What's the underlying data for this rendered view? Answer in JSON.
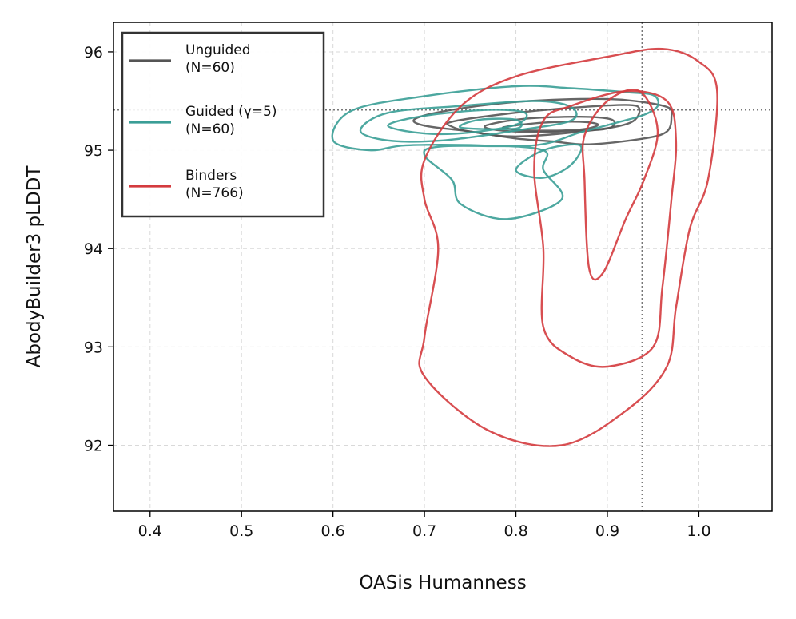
{
  "chart_data": {
    "type": "contour",
    "title": "",
    "xlabel": "OASis Humanness",
    "ylabel": "AbodyBuilder3 pLDDT",
    "xlim": [
      0.36,
      1.08
    ],
    "ylim": [
      91.33,
      96.3
    ],
    "x_ticks": [
      0.4,
      0.5,
      0.6,
      0.7,
      0.8,
      0.9,
      1.0
    ],
    "x_tick_labels": [
      "0.4",
      "0.5",
      "0.6",
      "0.7",
      "0.8",
      "0.9",
      "1.0"
    ],
    "y_ticks": [
      92,
      93,
      94,
      95,
      96
    ],
    "y_tick_labels": [
      "92",
      "93",
      "94",
      "95",
      "96"
    ],
    "grid": true,
    "legend_position": "top-left",
    "reference_lines": {
      "vertical_x": 0.938,
      "horizontal_y": 95.41
    },
    "series": [
      {
        "name": "Unguided",
        "count_label": "(N=60)",
        "color": "#555555",
        "contours": [
          [
            [
              0.69,
              95.32
            ],
            [
              0.73,
              95.41
            ],
            [
              0.8,
              95.49
            ],
            [
              0.87,
              95.52
            ],
            [
              0.92,
              95.51
            ],
            [
              0.965,
              95.44
            ],
            [
              0.97,
              95.34
            ],
            [
              0.965,
              95.19
            ],
            [
              0.94,
              95.12
            ],
            [
              0.88,
              95.06
            ],
            [
              0.84,
              95.09
            ],
            [
              0.8,
              95.12
            ],
            [
              0.75,
              95.19
            ],
            [
              0.7,
              95.25
            ]
          ],
          [
            [
              0.73,
              95.29
            ],
            [
              0.79,
              95.37
            ],
            [
              0.86,
              95.43
            ],
            [
              0.92,
              95.46
            ],
            [
              0.935,
              95.42
            ],
            [
              0.925,
              95.28
            ],
            [
              0.88,
              95.2
            ],
            [
              0.8,
              95.14
            ],
            [
              0.75,
              95.19
            ],
            [
              0.73,
              95.24
            ]
          ],
          [
            [
              0.77,
              95.26
            ],
            [
              0.81,
              95.32
            ],
            [
              0.87,
              95.34
            ],
            [
              0.905,
              95.31
            ],
            [
              0.9,
              95.22
            ],
            [
              0.85,
              95.19
            ],
            [
              0.8,
              95.19
            ],
            [
              0.77,
              95.22
            ]
          ],
          [
            [
              0.79,
              95.24
            ],
            [
              0.83,
              95.28
            ],
            [
              0.87,
              95.29
            ],
            [
              0.89,
              95.26
            ],
            [
              0.87,
              95.21
            ],
            [
              0.82,
              95.2
            ],
            [
              0.79,
              95.22
            ]
          ]
        ]
      },
      {
        "name": "Guided (γ=5)",
        "count_label": "(N=60)",
        "color": "#3a9e96",
        "contours": [
          [
            [
              0.6,
              95.1
            ],
            [
              0.62,
              95.4
            ],
            [
              0.7,
              95.55
            ],
            [
              0.8,
              95.65
            ],
            [
              0.86,
              95.63
            ],
            [
              0.92,
              95.59
            ],
            [
              0.95,
              95.56
            ],
            [
              0.955,
              95.45
            ],
            [
              0.94,
              95.36
            ],
            [
              0.91,
              95.28
            ],
            [
              0.87,
              95.18
            ],
            [
              0.82,
              95.05
            ],
            [
              0.72,
              95.04
            ],
            [
              0.7,
              94.95
            ],
            [
              0.73,
              94.7
            ],
            [
              0.74,
              94.45
            ],
            [
              0.79,
              94.3
            ],
            [
              0.85,
              94.5
            ],
            [
              0.83,
              94.8
            ],
            [
              0.83,
              95.0
            ],
            [
              0.76,
              95.05
            ],
            [
              0.68,
              95.05
            ],
            [
              0.64,
              95.0
            ]
          ],
          [
            [
              0.63,
              95.2
            ],
            [
              0.66,
              95.38
            ],
            [
              0.74,
              95.45
            ],
            [
              0.82,
              95.5
            ],
            [
              0.86,
              95.44
            ],
            [
              0.86,
              95.3
            ],
            [
              0.8,
              95.2
            ],
            [
              0.72,
              95.1
            ],
            [
              0.66,
              95.1
            ]
          ],
          [
            [
              0.66,
              95.25
            ],
            [
              0.7,
              95.35
            ],
            [
              0.77,
              95.41
            ],
            [
              0.81,
              95.38
            ],
            [
              0.8,
              95.26
            ],
            [
              0.75,
              95.18
            ],
            [
              0.7,
              95.17
            ]
          ],
          [
            [
              0.74,
              95.23
            ],
            [
              0.76,
              95.31
            ],
            [
              0.8,
              95.31
            ],
            [
              0.8,
              95.22
            ]
          ],
          [
            [
              0.8,
              94.8
            ],
            [
              0.83,
              95.0
            ],
            [
              0.87,
              95.05
            ],
            [
              0.86,
              94.85
            ],
            [
              0.83,
              94.72
            ]
          ]
        ]
      },
      {
        "name": "Binders",
        "count_label": "(N=766)",
        "color": "#d43b3e",
        "contours": [
          [
            [
              0.7,
              94.9
            ],
            [
              0.74,
              95.45
            ],
            [
              0.8,
              95.75
            ],
            [
              0.9,
              95.95
            ],
            [
              0.96,
              96.03
            ],
            [
              1.0,
              95.9
            ],
            [
              1.02,
              95.6
            ],
            [
              1.01,
              94.7
            ],
            [
              0.99,
              94.2
            ],
            [
              0.975,
              93.4
            ],
            [
              0.965,
              92.8
            ],
            [
              0.92,
              92.35
            ],
            [
              0.85,
              92.0
            ],
            [
              0.77,
              92.15
            ],
            [
              0.7,
              92.7
            ],
            [
              0.7,
              93.1
            ],
            [
              0.715,
              94.0
            ],
            [
              0.7,
              94.5
            ]
          ],
          [
            [
              0.83,
              95.3
            ],
            [
              0.86,
              95.45
            ],
            [
              0.92,
              95.6
            ],
            [
              0.965,
              95.5
            ],
            [
              0.975,
              95.1
            ],
            [
              0.97,
              94.5
            ],
            [
              0.96,
              93.6
            ],
            [
              0.95,
              93.0
            ],
            [
              0.9,
              92.8
            ],
            [
              0.86,
              92.9
            ],
            [
              0.83,
              93.2
            ],
            [
              0.83,
              94.0
            ],
            [
              0.82,
              94.8
            ]
          ],
          [
            [
              0.875,
              95.15
            ],
            [
              0.9,
              95.5
            ],
            [
              0.935,
              95.6
            ],
            [
              0.955,
              95.2
            ],
            [
              0.94,
              94.7
            ],
            [
              0.92,
              94.3
            ],
            [
              0.895,
              93.75
            ],
            [
              0.88,
              93.8
            ],
            [
              0.875,
              94.7
            ]
          ]
        ]
      }
    ]
  }
}
